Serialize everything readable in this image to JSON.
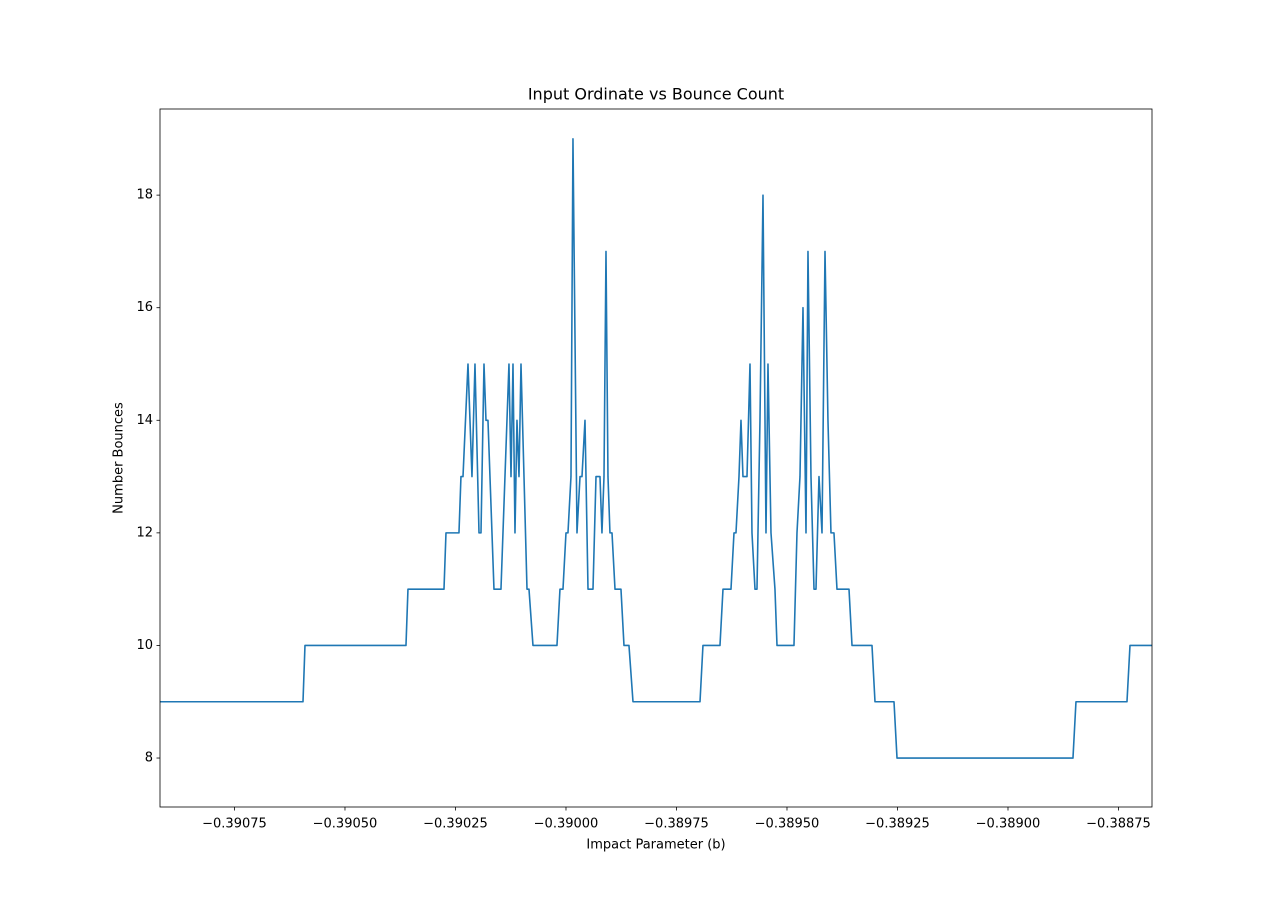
{
  "chart_data": {
    "type": "line",
    "title": "Input Ordinate vs Bounce Count",
    "xlabel": "Impact Parameter (b)",
    "ylabel": "Number Bounces",
    "x": [
      -0.3909185,
      -0.390595,
      -0.3905905,
      -0.390362,
      -0.3903575,
      -0.390276,
      -0.3902715,
      -0.3902421,
      -0.3902376,
      -0.390233,
      -0.3902217,
      -0.3902127,
      -0.3902059,
      -0.3901968,
      -0.3901923,
      -0.3901855,
      -0.390181,
      -0.3901765,
      -0.3901629,
      -0.3901471,
      -0.390129,
      -0.3901244,
      -0.3901199,
      -0.3901154,
      -0.3901109,
      -0.3901063,
      -0.3901018,
      -0.3900882,
      -0.3900837,
      -0.3900747,
      -0.3900204,
      -0.3900136,
      -0.3900068,
      -0.39,
      -0.3899955,
      -0.3899887,
      -0.3899842,
      -0.3899751,
      -0.3899683,
      -0.3899638,
      -0.389957,
      -0.3899502,
      -0.3899389,
      -0.3899321,
      -0.3899231,
      -0.3899186,
      -0.389914,
      -0.3899095,
      -0.389905,
      -0.3899005,
      -0.3898959,
      -0.3898891,
      -0.3898756,
      -0.3898688,
      -0.3898575,
      -0.3898484,
      -0.3896968,
      -0.3896901,
      -0.3896516,
      -0.3896448,
      -0.3896267,
      -0.3896199,
      -0.3896154,
      -0.3896086,
      -0.3896041,
      -0.3895996,
      -0.3895905,
      -0.3895837,
      -0.3895792,
      -0.3895724,
      -0.3895679,
      -0.3895611,
      -0.3895543,
      -0.3895475,
      -0.389543,
      -0.3895362,
      -0.3895272,
      -0.3895226,
      -0.3894842,
      -0.3894774,
      -0.3894706,
      -0.3894638,
      -0.389457,
      -0.3894525,
      -0.3894457,
      -0.3894389,
      -0.3894344,
      -0.3894276,
      -0.3894208,
      -0.389414,
      -0.3894073,
      -0.3894005,
      -0.3893937,
      -0.3893869,
      -0.3893597,
      -0.3893529,
      -0.3893077,
      -0.3893009,
      -0.3892579,
      -0.3892511,
      -0.388853,
      -0.3888462,
      -0.3887308,
      -0.388724,
      -0.3886742
    ],
    "series": [
      {
        "color": "#1f77b4",
        "values": [
          9,
          9,
          10,
          10,
          11,
          11,
          12,
          12,
          13,
          13,
          15,
          13,
          15,
          12,
          12,
          15,
          14,
          14,
          11,
          11,
          15,
          13,
          15,
          12,
          14,
          13,
          15,
          11,
          11,
          10,
          10,
          11,
          11,
          12,
          12,
          13,
          19,
          12,
          13,
          13,
          14,
          11,
          11,
          13,
          13,
          12,
          13,
          17,
          13,
          12,
          12,
          11,
          11,
          10,
          10,
          9,
          9,
          10,
          10,
          11,
          11,
          12,
          12,
          13,
          14,
          13,
          13,
          15,
          12,
          11,
          11,
          14,
          18,
          12,
          15,
          12,
          11,
          10,
          10,
          12,
          13,
          16,
          12,
          17,
          13,
          11,
          11,
          13,
          12,
          17,
          14,
          12,
          12,
          11,
          11,
          10,
          10,
          9,
          9,
          8,
          8,
          9,
          9,
          10,
          10
        ]
      }
    ],
    "xlim": [
      -0.3909185,
      -0.3886742
    ],
    "ylim": [
      7.13,
      19.53
    ],
    "xticks": [
      {
        "value": -0.39075,
        "label": "−0.39075"
      },
      {
        "value": -0.3905,
        "label": "−0.39050"
      },
      {
        "value": -0.39025,
        "label": "−0.39025"
      },
      {
        "value": -0.39,
        "label": "−0.39000"
      },
      {
        "value": -0.38975,
        "label": "−0.38975"
      },
      {
        "value": -0.3895,
        "label": "−0.38950"
      },
      {
        "value": -0.38925,
        "label": "−0.38925"
      },
      {
        "value": -0.389,
        "label": "−0.38900"
      },
      {
        "value": -0.38875,
        "label": "−0.38875"
      }
    ],
    "yticks": [
      8,
      10,
      12,
      14,
      16,
      18
    ]
  }
}
